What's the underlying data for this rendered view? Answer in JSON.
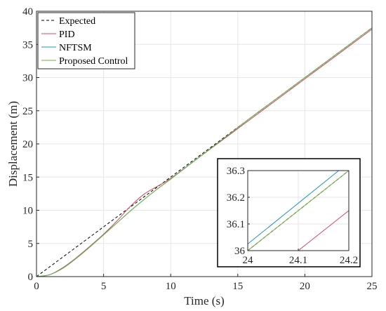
{
  "chart_data": {
    "type": "line",
    "xlabel": "Time (s)",
    "ylabel": "Displacement (m)",
    "xlim": [
      0,
      25
    ],
    "ylim": [
      0,
      40
    ],
    "xticks": [
      0,
      5,
      10,
      15,
      20,
      25
    ],
    "yticks": [
      0,
      5,
      10,
      15,
      20,
      25,
      30,
      35,
      40
    ],
    "grid": true,
    "legend_position": "top-left",
    "series": [
      {
        "name": "Expected",
        "color": "#000000",
        "dash": "dashed",
        "x": [
          0,
          25
        ],
        "y": [
          0,
          37.5
        ]
      },
      {
        "name": "PID",
        "color": "#d6455f",
        "dash": "solid",
        "x": [
          0,
          1,
          2,
          3,
          4,
          5,
          6,
          7,
          8,
          9,
          10,
          12,
          14,
          16,
          18,
          20,
          22,
          25
        ],
        "y": [
          0,
          0.3,
          1.4,
          2.9,
          4.6,
          6.4,
          8.4,
          10.6,
          12.4,
          13.6,
          14.8,
          17.8,
          20.8,
          23.8,
          26.8,
          29.8,
          32.8,
          37.3
        ]
      },
      {
        "name": "NFTSM",
        "color": "#1f93c8",
        "dash": "solid",
        "x": [
          0,
          1,
          2,
          3,
          4,
          5,
          6,
          7,
          8,
          9,
          10,
          12,
          14,
          16,
          18,
          20,
          22,
          25
        ],
        "y": [
          0,
          0.3,
          1.3,
          2.8,
          4.5,
          6.3,
          8.1,
          9.9,
          11.6,
          13.2,
          14.7,
          17.8,
          20.9,
          24.0,
          27.0,
          30.0,
          33.0,
          37.5
        ]
      },
      {
        "name": "Proposed Control",
        "color": "#6db33f",
        "dash": "solid",
        "x": [
          0,
          1,
          2,
          3,
          4,
          5,
          6,
          7,
          8,
          9,
          10,
          12,
          14,
          16,
          18,
          20,
          22,
          25
        ],
        "y": [
          0,
          0.3,
          1.3,
          2.8,
          4.5,
          6.3,
          8.1,
          9.9,
          11.6,
          13.2,
          14.7,
          17.8,
          20.9,
          24.0,
          27.0,
          30.0,
          33.0,
          37.5
        ]
      }
    ],
    "inset": {
      "type": "line",
      "xlim": [
        24,
        24.2
      ],
      "ylim": [
        36,
        36.3
      ],
      "xticks": [
        24,
        24.1,
        24.2
      ],
      "xtick_labels": [
        "24",
        "24.1",
        "24.2"
      ],
      "yticks": [
        36,
        36.1,
        36.2,
        36.3
      ],
      "ytick_labels": [
        "36",
        "36.1",
        "36.2",
        "36.3"
      ],
      "grid": true,
      "series": [
        {
          "name": "Expected",
          "color": "#000000",
          "dash": "dashed",
          "x": [
            24,
            24.2
          ],
          "y": [
            36,
            36.3
          ]
        },
        {
          "name": "PID",
          "color": "#d6455f",
          "dash": "solid",
          "x": [
            24.1,
            24.2
          ],
          "y": [
            36,
            36.15
          ]
        },
        {
          "name": "NFTSM",
          "color": "#1f93c8",
          "dash": "solid",
          "x": [
            24,
            24.18
          ],
          "y": [
            36.025,
            36.3
          ]
        },
        {
          "name": "Proposed Control",
          "color": "#6db33f",
          "dash": "solid",
          "x": [
            24,
            24.2
          ],
          "y": [
            36,
            36.3
          ]
        }
      ]
    }
  }
}
